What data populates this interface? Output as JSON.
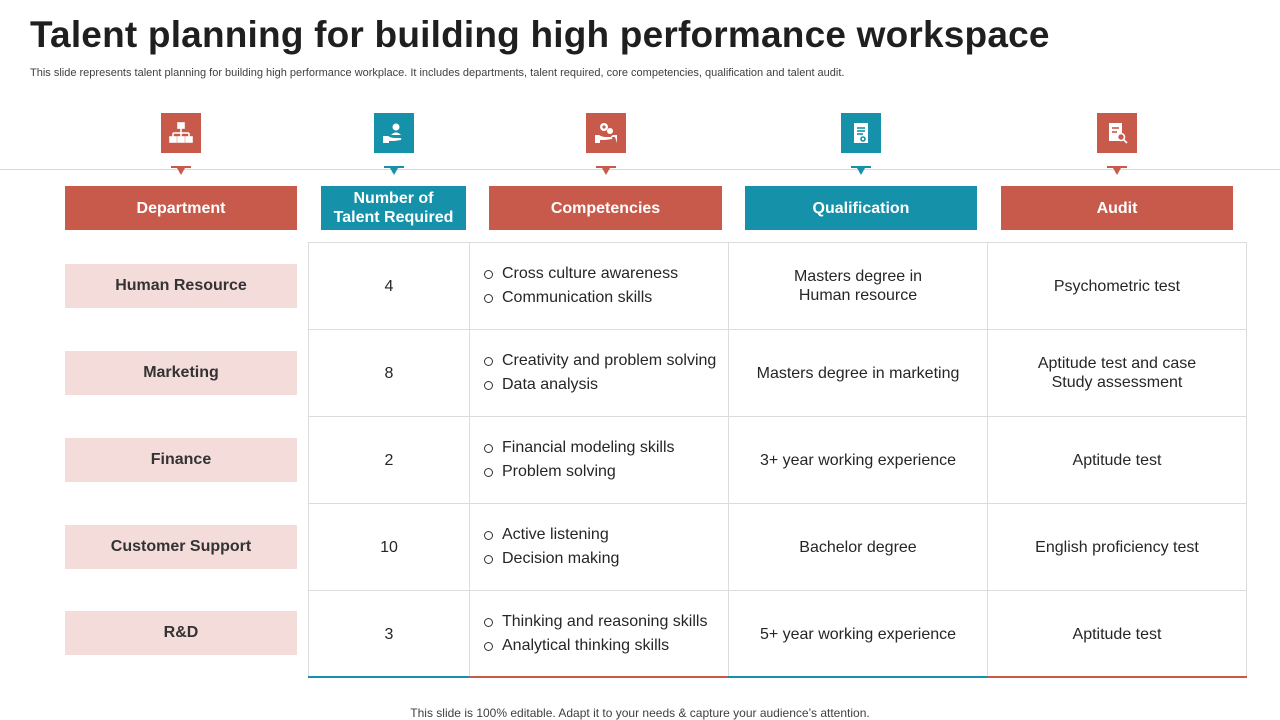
{
  "title": "Talent planning for building high performance workspace",
  "subtitle": "This slide represents talent planning for building high performance workplace. It includes departments, talent required, core competencies, qualification and talent audit.",
  "icons": [
    {
      "name": "org-chart-icon",
      "color": "#c85a4b"
    },
    {
      "name": "hand-user-icon",
      "color": "#1591a9"
    },
    {
      "name": "hand-gear-icon",
      "color": "#c85a4b"
    },
    {
      "name": "certificate-icon",
      "color": "#1591a9"
    },
    {
      "name": "audit-report-icon",
      "color": "#c85a4b"
    }
  ],
  "headers": [
    {
      "label": "Department",
      "color": "#c85a4b"
    },
    {
      "label": "Number of\nTalent Required",
      "color": "#1591a9"
    },
    {
      "label": "Competencies",
      "color": "#c85a4b"
    },
    {
      "label": "Qualification",
      "color": "#1591a9"
    },
    {
      "label": "Audit",
      "color": "#c85a4b"
    }
  ],
  "rows": [
    {
      "department": "Human Resource",
      "talent_required": "4",
      "competencies": [
        "Cross culture awareness",
        "Communication skills"
      ],
      "qualification": "Masters degree in\nHuman resource",
      "audit": "Psychometric test"
    },
    {
      "department": "Marketing",
      "talent_required": "8",
      "competencies": [
        "Creativity and problem solving",
        "Data analysis"
      ],
      "qualification": "Masters degree in marketing",
      "audit": "Aptitude test  and case\nStudy assessment"
    },
    {
      "department": "Finance",
      "talent_required": "2",
      "competencies": [
        "Financial modeling skills",
        "Problem solving"
      ],
      "qualification": "3+ year working experience",
      "audit": "Aptitude test"
    },
    {
      "department": "Customer Support",
      "talent_required": "10",
      "competencies": [
        "Active listening",
        "Decision making"
      ],
      "qualification": "Bachelor degree",
      "audit": "English proficiency test"
    },
    {
      "department": "R&D",
      "talent_required": "3",
      "competencies": [
        "Thinking and reasoning skills",
        "Analytical thinking skills"
      ],
      "qualification": "5+ year working experience",
      "audit": "Aptitude test"
    }
  ],
  "footer": "This slide is 100% editable. Adapt it to your needs & capture your audience’s attention."
}
